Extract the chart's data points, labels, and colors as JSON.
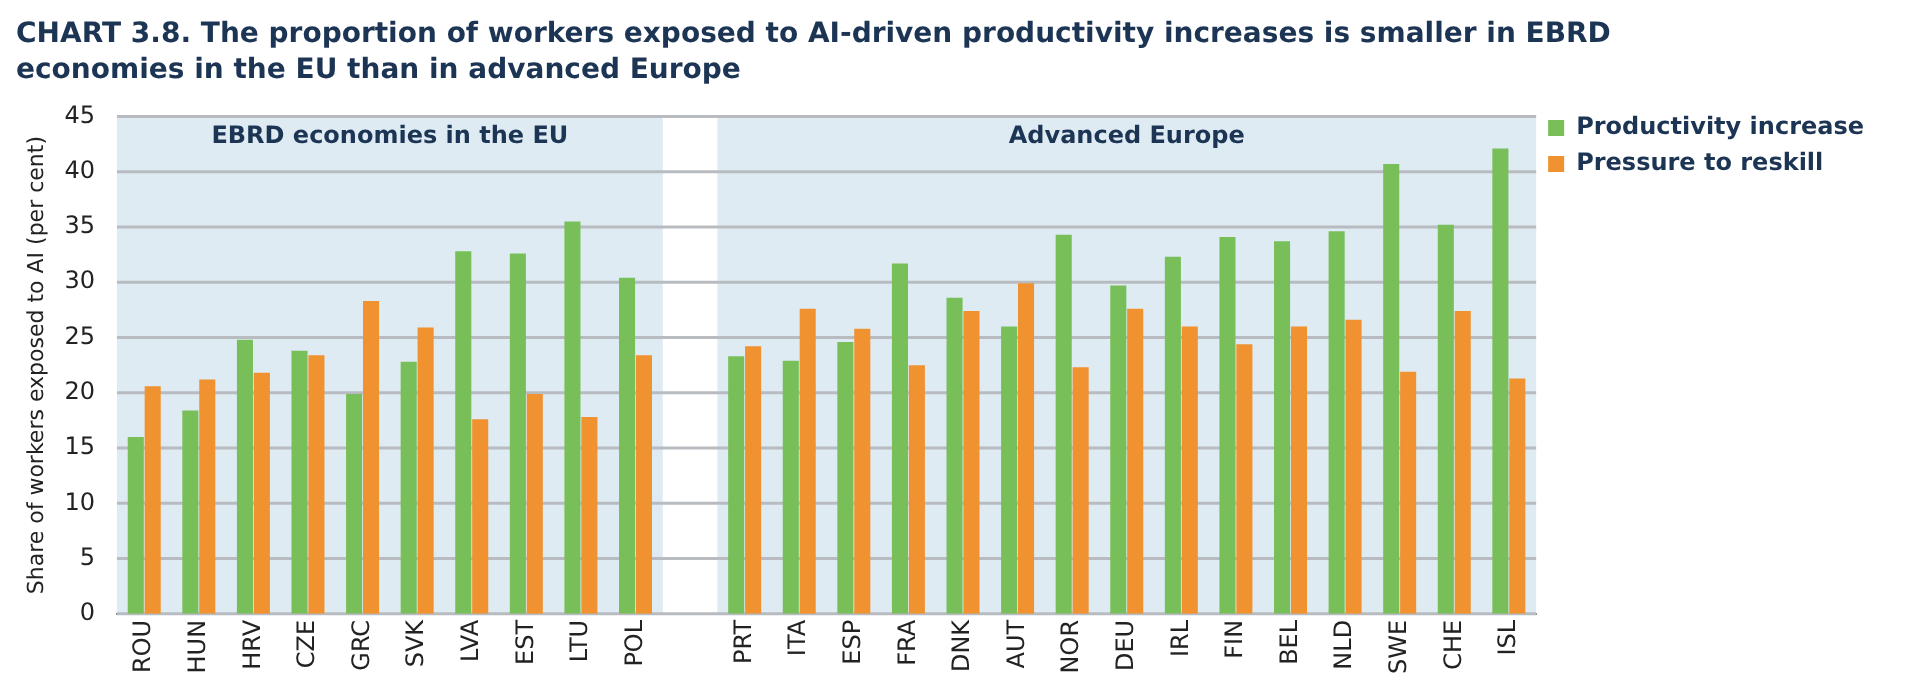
{
  "chart_data": {
    "type": "bar",
    "title": "CHART 3.8. The proportion of workers exposed to AI-driven productivity increases is smaller in EBRD economies in the EU than in advanced Europe",
    "ylabel": "Share of workers exposed to AI (per cent)",
    "categories": [
      "ROU",
      "HUN",
      "HRV",
      "CZE",
      "GRC",
      "SVK",
      "LVA",
      "EST",
      "LTU",
      "POL",
      null,
      "PRT",
      "ITA",
      "ESP",
      "FRA",
      "DNK",
      "AUT",
      "NOR",
      "DEU",
      "IRL",
      "FIN",
      "BEL",
      "NLD",
      "SWE",
      "CHE",
      "ISL"
    ],
    "series": [
      {
        "name": "Productivity increase",
        "color": "#78bf59",
        "values": [
          16,
          18.4,
          24.8,
          23.8,
          19.9,
          22.8,
          32.8,
          32.6,
          35.5,
          30.4,
          null,
          23.3,
          22.9,
          24.6,
          31.7,
          28.6,
          26.0,
          34.3,
          29.7,
          32.3,
          34.1,
          33.7,
          34.6,
          40.7,
          35.2,
          42.1
        ]
      },
      {
        "name": "Pressure to reskill",
        "color": "#f0922f",
        "values": [
          20.6,
          21.2,
          21.8,
          23.4,
          28.3,
          25.9,
          17.6,
          19.9,
          17.8,
          23.4,
          null,
          24.2,
          27.6,
          25.8,
          22.5,
          27.4,
          29.9,
          22.3,
          27.6,
          26.0,
          24.4,
          26.0,
          26.6,
          21.9,
          27.4,
          21.3
        ]
      }
    ],
    "ylim": [
      0,
      45
    ],
    "yticks": [
      0,
      5,
      10,
      15,
      20,
      25,
      30,
      35,
      40,
      45
    ],
    "grid": "y",
    "legend": "top right",
    "bands": [
      {
        "axis": "x",
        "from": "ROU",
        "to": "POL",
        "label": "EBRD economies in the EU",
        "color": "#deebf3"
      },
      {
        "axis": "x",
        "from": "PRT",
        "to": "ISL",
        "label": "Advanced Europe",
        "color": "#deebf3"
      }
    ]
  }
}
